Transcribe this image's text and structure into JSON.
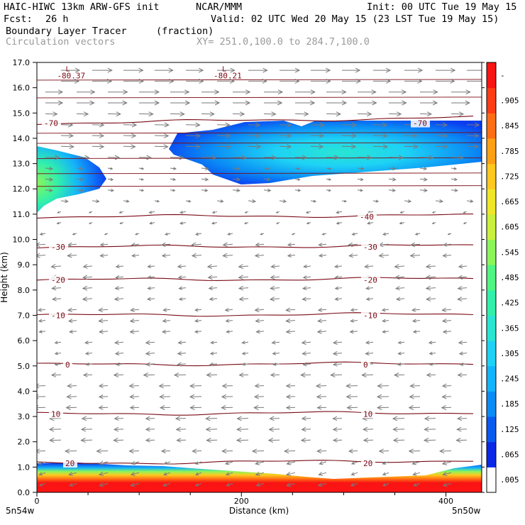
{
  "header": {
    "model": "HAIC-HIWC 13km ARW-GFS init",
    "center": "NCAR/MMM",
    "init": "Init: 00 UTC Tue 19 May 15",
    "fcst_label": "Fcst:",
    "fcst_value": "26 h",
    "valid": "Valid: 02 UTC Wed 20 May 15 (23 LST Tue 19 May 15)",
    "field": "Boundary Layer Tracer",
    "units": "(fraction)",
    "overlay": "Circulation vectors",
    "xy": "XY= 251.0,100.0 to 284.7,100.0"
  },
  "chart_data": {
    "type": "heatmap",
    "title": "Boundary Layer Tracer",
    "xlabel": "Distance (km)",
    "ylabel": "Height (km)",
    "xlim": [
      0,
      435
    ],
    "ylim": [
      0,
      17
    ],
    "x_ticks": [
      0,
      200,
      400
    ],
    "y_ticks": [
      "0.0",
      "1.0",
      "2.0",
      "3.0",
      "4.0",
      "5.0",
      "6.0",
      "7.0",
      "8.0",
      "9.0",
      "10.0",
      "11.0",
      "12.0",
      "13.0",
      "14.0",
      "15.0",
      "16.0",
      "17.0"
    ],
    "x_endpoints": [
      "5n54w",
      "5n50w"
    ],
    "colorbar": {
      "labels": [
        ".005",
        ".065",
        ".125",
        ".185",
        ".245",
        ".305",
        ".365",
        ".425",
        ".485",
        ".545",
        ".605",
        ".665",
        ".725",
        ".785",
        ".845",
        ".905",
        "-"
      ],
      "colors": [
        "#ffffff",
        "#0a28e6",
        "#0a5af0",
        "#0a8cf5",
        "#14b4fa",
        "#1ed2f5",
        "#28e6d2",
        "#32f0aa",
        "#50f582",
        "#8cf55a",
        "#c8f03c",
        "#f0e628",
        "#ffc81e",
        "#ffa014",
        "#ff6e14",
        "#ff3c14",
        "#fa1414"
      ]
    },
    "temperature_contours": [
      {
        "label": "-70",
        "height_km": 14.6
      },
      {
        "label": "-40",
        "height_km": 10.9
      },
      {
        "label": "-30",
        "height_km": 9.7
      },
      {
        "label": "-20",
        "height_km": 8.4
      },
      {
        "label": "-10",
        "height_km": 7.0
      },
      {
        "label": "0",
        "height_km": 5.05
      },
      {
        "label": "10",
        "height_km": 3.1
      },
      {
        "label": "20",
        "height_km": 1.15
      }
    ],
    "low_labels": [
      {
        "label": "-80.37",
        "x_km": 35,
        "height_km": 16.7
      },
      {
        "label": "-80.21",
        "x_km": 188,
        "height_km": 16.7
      }
    ]
  }
}
